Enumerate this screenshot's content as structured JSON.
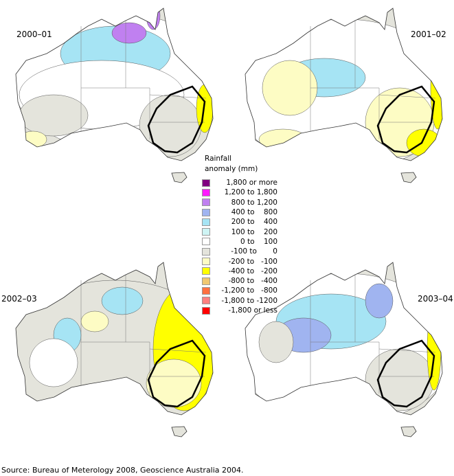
{
  "maps": [
    {
      "year": "2000–01"
    },
    {
      "year": "2001–02"
    },
    {
      "year": "2002–03"
    },
    {
      "year": "2003–04"
    }
  ],
  "legend": {
    "title_line1": "Rainfall",
    "title_line2": "anomaly  (mm)",
    "items": [
      {
        "label": "1,800 or more",
        "color": "#800080"
      },
      {
        "label": "1,200 to 1,800",
        "color": "#ff1aff"
      },
      {
        "label": "800 to 1,200",
        "color": "#c080f0"
      },
      {
        "label": "400 to    800",
        "color": "#a0b4f0"
      },
      {
        "label": "200 to    400",
        "color": "#a6e4f4"
      },
      {
        "label": "100 to    200",
        "color": "#cef4f4"
      },
      {
        "label": "0 to    100",
        "color": "#ffffff"
      },
      {
        "label": "-100 to       0",
        "color": "#e4e4dc"
      },
      {
        "label": "-200 to   -100",
        "color": "#fdfcc4"
      },
      {
        "label": "-400 to   -200",
        "color": "#ffff00"
      },
      {
        "label": "-800 to   -400",
        "color": "#f0c870"
      },
      {
        "label": "-1,200 to   -800",
        "color": "#ff7040"
      },
      {
        "label": "-1,800 to -1200",
        "color": "#ff8080"
      },
      {
        "label": "-1,800 or less",
        "color": "#ff0000"
      }
    ]
  },
  "source": "Source: Bureau of Meterology 2008, Geoscience Australia 2004."
}
